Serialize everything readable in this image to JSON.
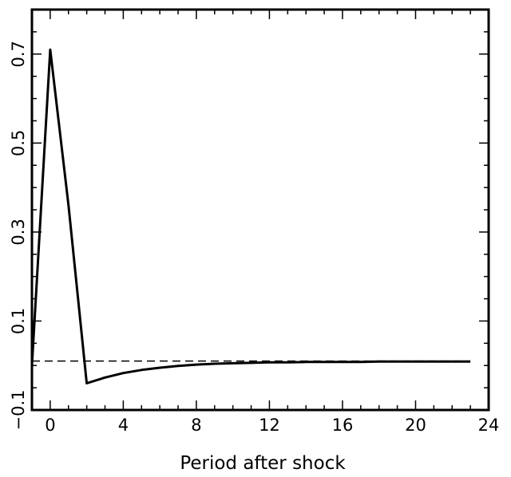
{
  "chart_data": {
    "type": "line",
    "title": "",
    "xlabel": "Period after shock",
    "ylabel": "",
    "xlim": [
      -1,
      24
    ],
    "ylim": [
      -0.1,
      0.8
    ],
    "x_ticks": [
      0,
      4,
      8,
      12,
      16,
      20,
      24
    ],
    "x_tick_labels": [
      "0",
      "4",
      "8",
      "12",
      "16",
      "20",
      "24"
    ],
    "y_ticks": [
      -0.1,
      0.1,
      0.3,
      0.5,
      0.7
    ],
    "y_tick_labels": [
      "−0.1",
      "0.1",
      "0.3",
      "0.5",
      "0.7"
    ],
    "grid": false,
    "series": [
      {
        "style": "solid",
        "x": [
          -1,
          0,
          1,
          2,
          3,
          4,
          5,
          6,
          7,
          8,
          9,
          10,
          11,
          12,
          13,
          14,
          15,
          16,
          17,
          18,
          19,
          20,
          21,
          22,
          23
        ],
        "y": [
          0.0,
          0.71,
          0.36,
          -0.04,
          -0.027,
          -0.017,
          -0.01,
          -0.005,
          -0.001,
          0.002,
          0.004,
          0.005,
          0.006,
          0.007,
          0.007,
          0.008,
          0.008,
          0.008,
          0.008,
          0.009,
          0.009,
          0.009,
          0.009,
          0.009,
          0.009
        ]
      },
      {
        "style": "dashed",
        "x": [
          -1,
          23
        ],
        "y": [
          0.01,
          0.01
        ]
      }
    ]
  }
}
